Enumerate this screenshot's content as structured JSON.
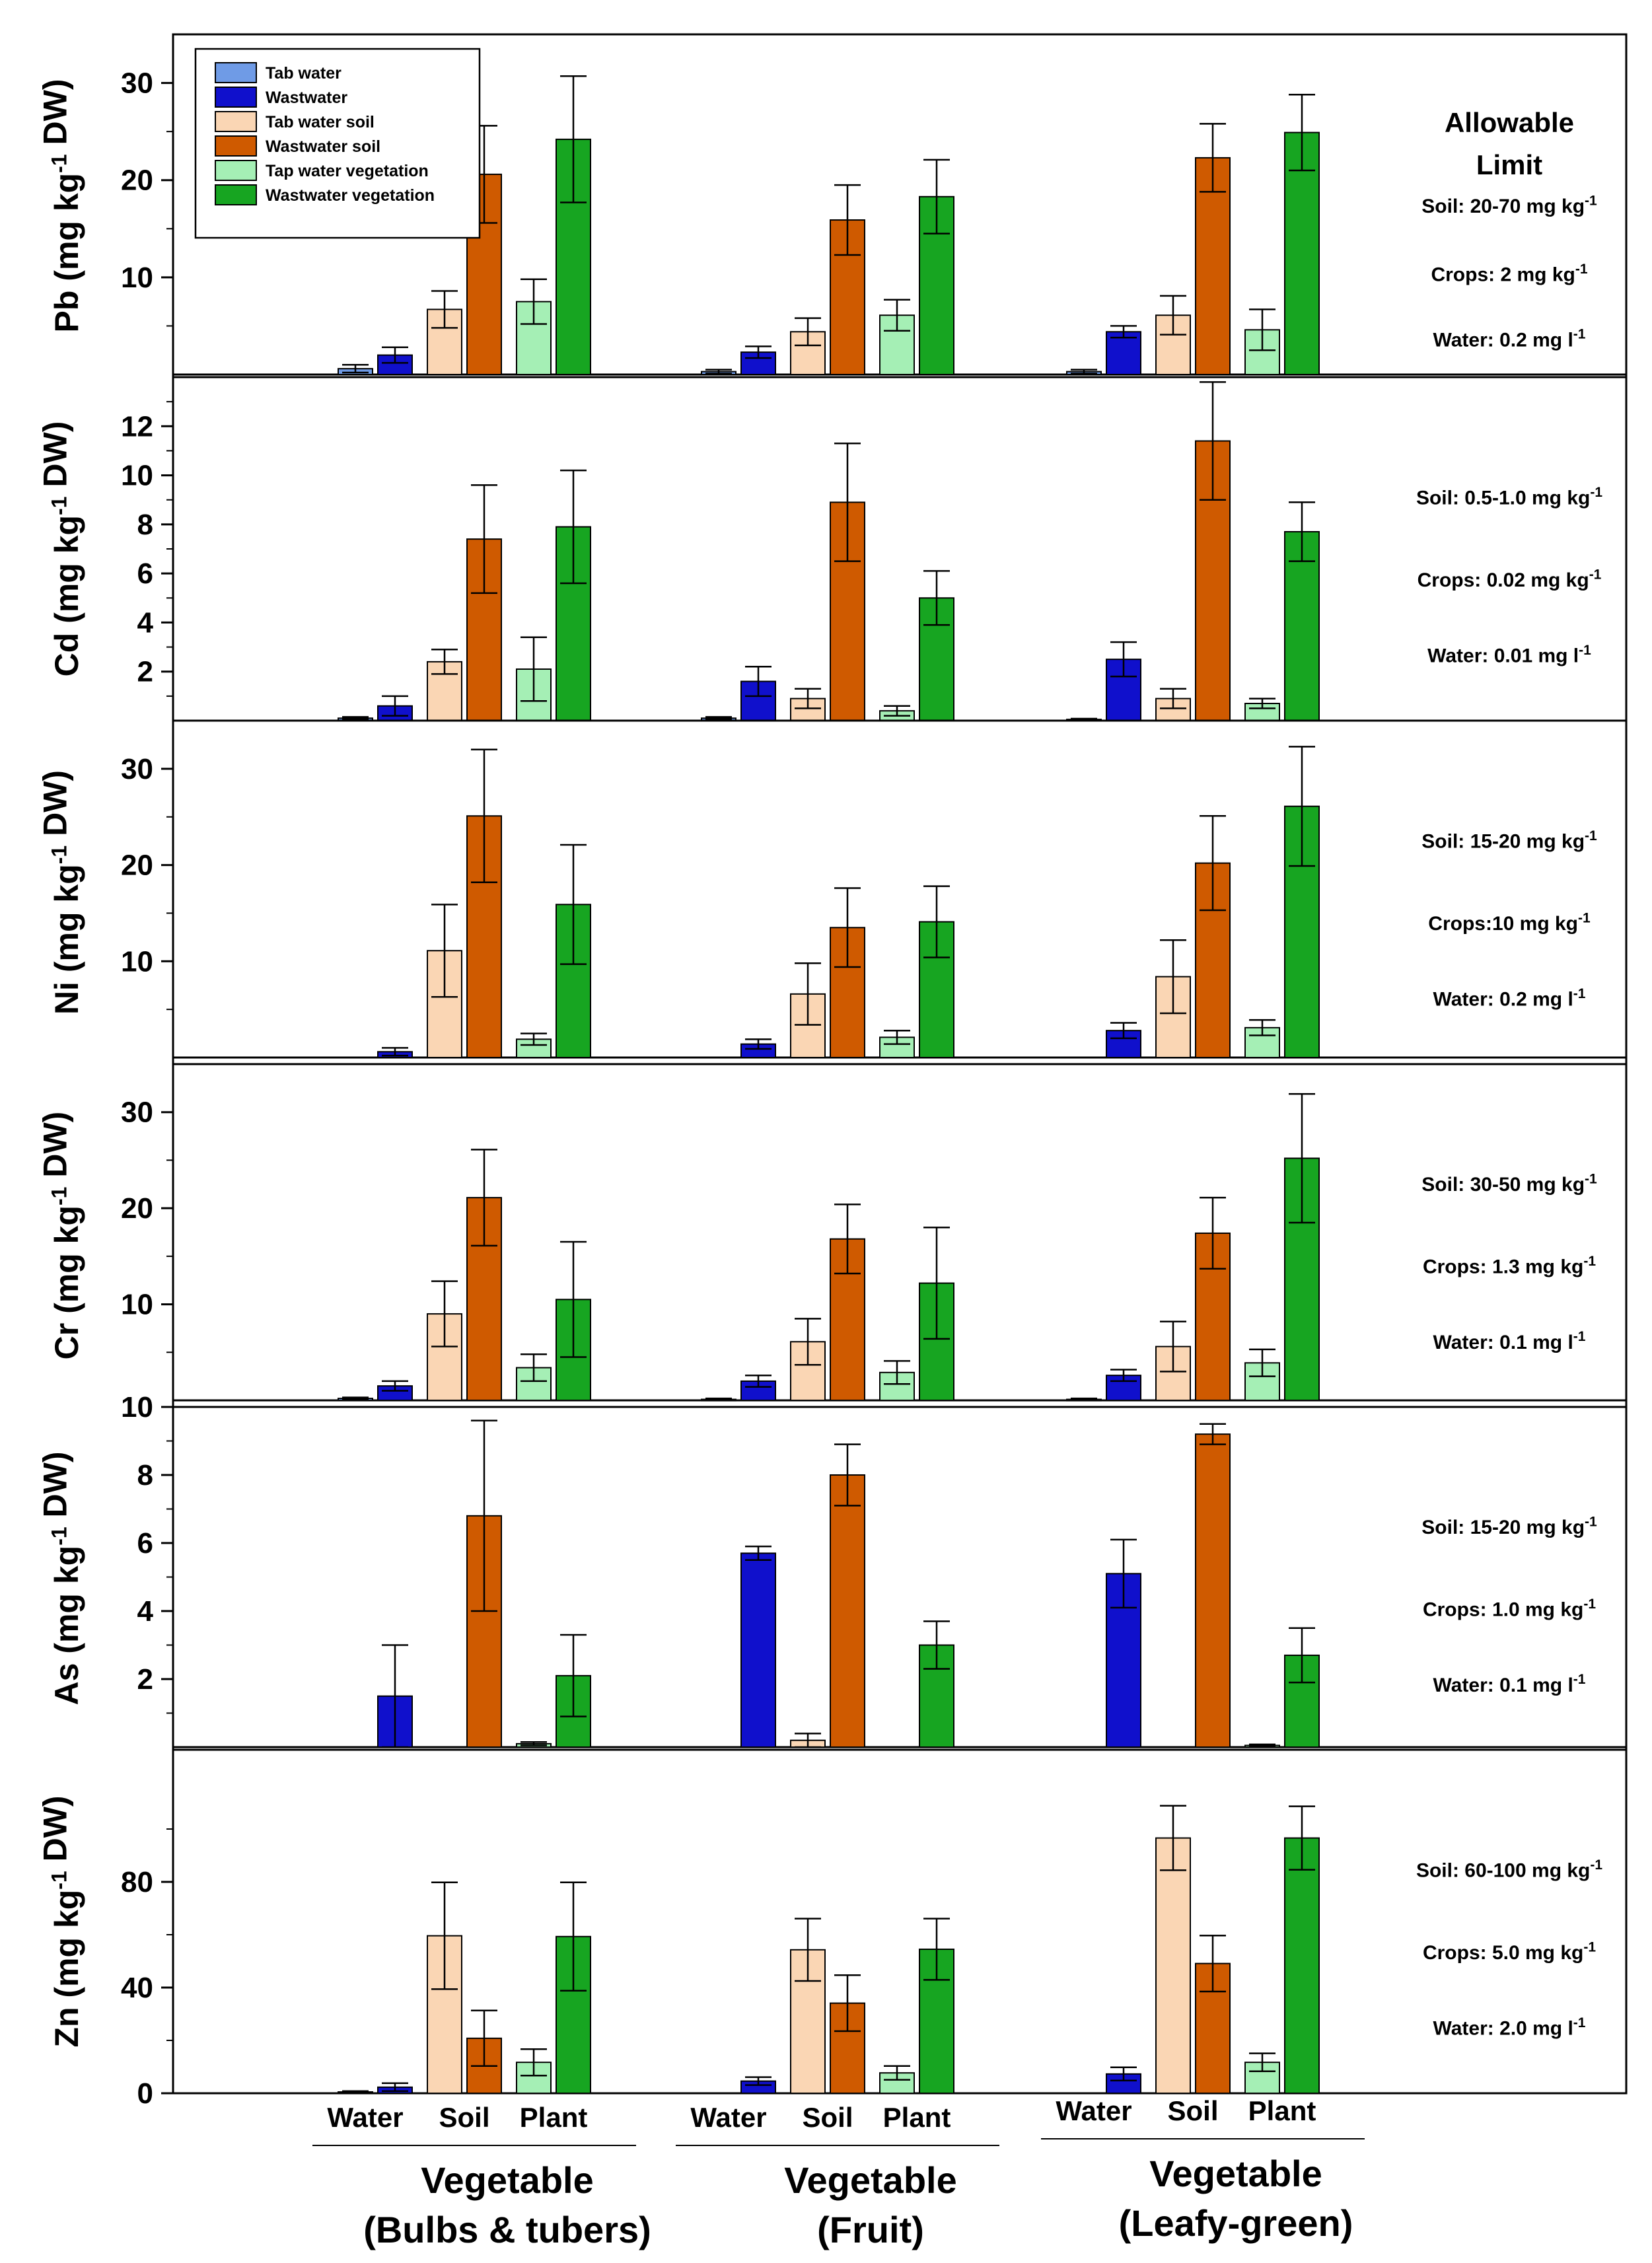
{
  "chart_data": {
    "type": "bar",
    "categories": [
      "Vegetable\n(Bulbs & tubers)",
      "Vegetable\n(Fruit)",
      "Vegetable\n(Leafy-green)"
    ],
    "group_labels": [
      {
        "line1": "Vegetable",
        "line2": "(Bulbs & tubers)"
      },
      {
        "line1": "Vegetable",
        "line2": "(Fruit)"
      },
      {
        "line1": "Vegetable",
        "line2": "(Leafy-green)"
      }
    ],
    "sub_labels": [
      "Water",
      "Soil",
      "Plant"
    ],
    "series_names": [
      "Tab water",
      "Wastwater",
      "Tab water soil",
      "Wastwater soil",
      "Tap water vegetation",
      "Wastwater vegetation"
    ],
    "colors": [
      "#6f9be6",
      "#1010cc",
      "#fad6b4",
      "#cf5a00",
      "#a5efb5",
      "#17a521"
    ],
    "legend_placement": "top-left",
    "allowable_limit_title": [
      "Allowable",
      "Limit"
    ],
    "panels": [
      {
        "ylabel": "Pb (mg kg-1 DW)",
        "ylim": [
          0,
          35
        ],
        "yticks": [
          10,
          20,
          30
        ],
        "values": [
          [
            0.6,
            2.0,
            6.7,
            20.6,
            7.5,
            24.2
          ],
          [
            0.3,
            2.3,
            4.4,
            15.9,
            6.1,
            18.3
          ],
          [
            0.3,
            4.4,
            6.1,
            22.3,
            4.6,
            24.9
          ]
        ],
        "errors": [
          [
            0.4,
            0.8,
            1.9,
            5.0,
            2.3,
            6.5
          ],
          [
            0.2,
            0.6,
            1.4,
            3.6,
            1.6,
            3.8
          ],
          [
            0.2,
            0.6,
            2.0,
            3.5,
            2.1,
            3.9
          ]
        ],
        "limits": [
          "Soil: 20-70 mg kg-1",
          "Crops: 2 mg kg-1",
          "Water: 0.2 mg l-1"
        ]
      },
      {
        "ylabel": "Cd (mg kg-1 DW)",
        "ylim": [
          0,
          14
        ],
        "yticks": [
          2,
          4,
          6,
          8,
          10,
          12
        ],
        "values": [
          [
            0.1,
            0.6,
            2.4,
            7.4,
            2.1,
            7.9
          ],
          [
            0.1,
            1.6,
            0.9,
            8.9,
            0.4,
            5.0
          ],
          [
            0.05,
            2.5,
            0.9,
            11.4,
            0.7,
            7.7
          ]
        ],
        "errors": [
          [
            0.05,
            0.4,
            0.5,
            2.2,
            1.3,
            2.3
          ],
          [
            0.05,
            0.6,
            0.4,
            2.4,
            0.2,
            1.1
          ],
          [
            0.03,
            0.7,
            0.4,
            2.4,
            0.2,
            1.2
          ]
        ],
        "limits": [
          "Soil: 0.5-1.0 mg kg-1",
          "Crops: 0.02 mg kg-1",
          "Water: 0.01 mg l-1"
        ]
      },
      {
        "ylabel": "Ni (mg kg-1 DW)",
        "ylim": [
          0,
          35
        ],
        "yticks": [
          10,
          20,
          30
        ],
        "values": [
          [
            0,
            0.6,
            11.1,
            25.1,
            1.9,
            15.9
          ],
          [
            0,
            1.4,
            6.6,
            13.5,
            2.1,
            14.1
          ],
          [
            0,
            2.8,
            8.4,
            20.2,
            3.1,
            26.1
          ]
        ],
        "errors": [
          [
            0,
            0.4,
            4.8,
            6.9,
            0.6,
            6.2
          ],
          [
            0,
            0.5,
            3.2,
            4.1,
            0.7,
            3.7
          ],
          [
            0,
            0.8,
            3.8,
            4.9,
            0.8,
            6.2
          ]
        ],
        "limits": [
          "Soil: 15-20 mg kg-1",
          "Crops:10 mg kg-1",
          "Water: 0.2 mg l-1"
        ]
      },
      {
        "ylabel": "Cr (mg kg-1 DW)",
        "ylim": [
          0,
          35
        ],
        "yticks": [
          10,
          20,
          30
        ],
        "values": [
          [
            0.2,
            1.5,
            9.0,
            21.1,
            3.4,
            10.5
          ],
          [
            0.1,
            2.0,
            6.1,
            16.8,
            2.9,
            12.2
          ],
          [
            0.1,
            2.6,
            5.6,
            17.4,
            3.9,
            25.2
          ]
        ],
        "errors": [
          [
            0.1,
            0.5,
            3.4,
            5.0,
            1.4,
            6.0
          ],
          [
            0.1,
            0.6,
            2.4,
            3.6,
            1.2,
            5.8
          ],
          [
            0.1,
            0.6,
            2.6,
            3.7,
            1.4,
            6.7
          ]
        ],
        "limits": [
          "Soil: 30-50 mg kg-1",
          "Crops: 1.3 mg kg-1",
          "Water: 0.1 mg l-1"
        ]
      },
      {
        "ylabel": "As (mg kg-1 DW)",
        "ylim": [
          0,
          10
        ],
        "yticks": [
          2,
          4,
          6,
          8,
          10
        ],
        "values": [
          [
            0,
            1.5,
            0,
            6.8,
            0.1,
            2.1
          ],
          [
            0,
            5.7,
            0.2,
            8.0,
            0,
            3.0
          ],
          [
            0,
            5.1,
            0,
            9.2,
            0.05,
            2.7
          ]
        ],
        "errors": [
          [
            0,
            1.5,
            0,
            2.8,
            0.05,
            1.2
          ],
          [
            0,
            0.2,
            0.2,
            0.9,
            0,
            0.7
          ],
          [
            0,
            1.0,
            0,
            0.3,
            0.03,
            0.8
          ]
        ],
        "limits": [
          "Soil: 15-20 mg kg-1",
          "Crops: 1.0 mg kg-1",
          "Water: 0.1 mg l-1"
        ]
      },
      {
        "ylabel": "Zn (mg kg-1 DW)",
        "ylim": [
          0,
          130
        ],
        "yticks": [
          0,
          40,
          80
        ],
        "values": [
          [
            0.5,
            2.3,
            59.6,
            20.8,
            11.7,
            59.3
          ],
          [
            0,
            4.6,
            54.3,
            34.1,
            7.7,
            54.5
          ],
          [
            0,
            7.3,
            96.6,
            49.1,
            11.7,
            96.6
          ]
        ],
        "errors": [
          [
            0.3,
            1.5,
            20.2,
            10.5,
            5.0,
            20.5
          ],
          [
            0,
            1.5,
            11.8,
            10.6,
            2.6,
            11.6
          ],
          [
            0,
            2.5,
            12.2,
            10.6,
            3.4,
            12.0
          ]
        ],
        "limits": [
          "Soil: 60-100 mg kg-1",
          "Crops: 5.0 mg kg-1",
          "Water: 2.0 mg l-1"
        ]
      }
    ]
  }
}
